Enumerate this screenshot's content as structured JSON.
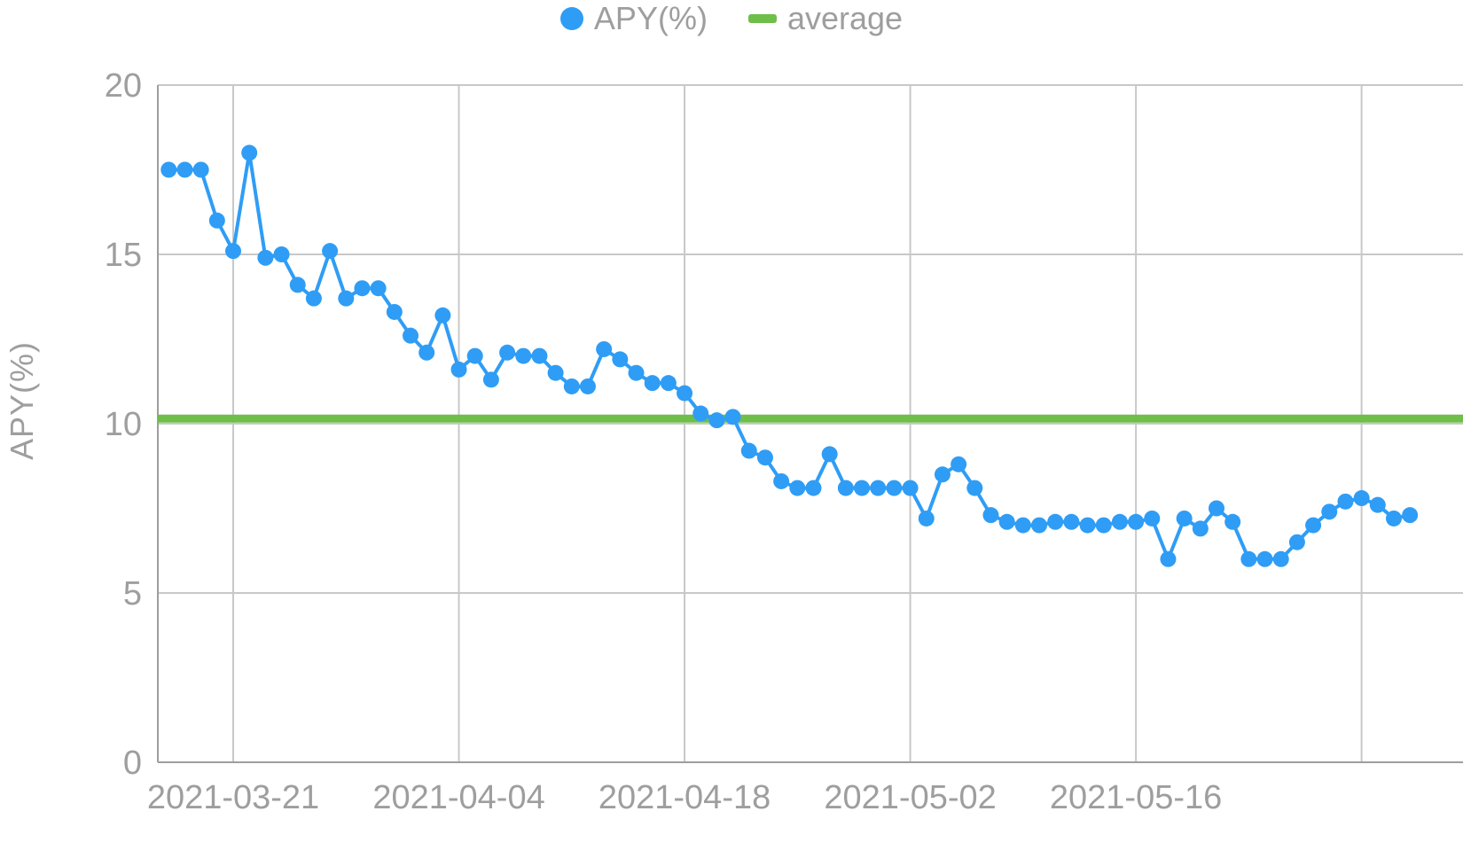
{
  "chart_data": {
    "type": "line",
    "title": "",
    "xlabel": "",
    "ylabel": "APY(%)",
    "ylim": [
      0,
      20
    ],
    "y_ticks": [
      0,
      5,
      10,
      15,
      20
    ],
    "x_tick_labels": [
      "2021-03-21",
      "2021-04-04",
      "2021-04-18",
      "2021-05-02",
      "2021-05-16"
    ],
    "grid": true,
    "legend_position": "top",
    "x": [
      "2021-03-17",
      "2021-03-18",
      "2021-03-19",
      "2021-03-20",
      "2021-03-21",
      "2021-03-22",
      "2021-03-23",
      "2021-03-24",
      "2021-03-25",
      "2021-03-26",
      "2021-03-27",
      "2021-03-28",
      "2021-03-29",
      "2021-03-30",
      "2021-03-31",
      "2021-04-01",
      "2021-04-02",
      "2021-04-03",
      "2021-04-04",
      "2021-04-05",
      "2021-04-06",
      "2021-04-07",
      "2021-04-08",
      "2021-04-09",
      "2021-04-10",
      "2021-04-11",
      "2021-04-12",
      "2021-04-13",
      "2021-04-14",
      "2021-04-15",
      "2021-04-16",
      "2021-04-17",
      "2021-04-18",
      "2021-04-19",
      "2021-04-20",
      "2021-04-21",
      "2021-04-22",
      "2021-04-23",
      "2021-04-24",
      "2021-04-25",
      "2021-04-26",
      "2021-04-27",
      "2021-04-28",
      "2021-04-29",
      "2021-04-30",
      "2021-05-01",
      "2021-05-02",
      "2021-05-03",
      "2021-05-04",
      "2021-05-05",
      "2021-05-06",
      "2021-05-07",
      "2021-05-08",
      "2021-05-09",
      "2021-05-10",
      "2021-05-11",
      "2021-05-12",
      "2021-05-13",
      "2021-05-14",
      "2021-05-15",
      "2021-05-16",
      "2021-05-17",
      "2021-05-18",
      "2021-05-19",
      "2021-05-20",
      "2021-05-21",
      "2021-05-22",
      "2021-05-23",
      "2021-05-24",
      "2021-05-25",
      "2021-05-26",
      "2021-05-27",
      "2021-05-28",
      "2021-05-29",
      "2021-05-30",
      "2021-05-31",
      "2021-06-01",
      "2021-06-02"
    ],
    "series": [
      {
        "name": "APY(%)",
        "type": "line",
        "color": "#2f9df5",
        "values": [
          17.5,
          17.5,
          17.5,
          16.0,
          15.1,
          18.0,
          14.9,
          15.0,
          14.1,
          13.7,
          15.1,
          13.7,
          14.0,
          14.0,
          13.3,
          12.6,
          12.1,
          13.2,
          11.6,
          12.0,
          11.3,
          12.1,
          12.0,
          12.0,
          11.5,
          11.1,
          11.1,
          12.2,
          11.9,
          11.5,
          11.2,
          11.2,
          10.9,
          10.3,
          10.1,
          10.2,
          9.2,
          9.0,
          8.3,
          8.1,
          8.1,
          9.1,
          8.1,
          8.1,
          8.1,
          8.1,
          8.1,
          7.2,
          8.5,
          8.8,
          8.1,
          7.3,
          7.1,
          7.0,
          7.0,
          7.1,
          7.1,
          7.0,
          7.0,
          7.1,
          7.1,
          7.2,
          6.0,
          7.2,
          6.9,
          7.5,
          7.1,
          6.0,
          6.0,
          6.0,
          6.5,
          7.0,
          7.4,
          7.7,
          7.8,
          7.6,
          7.2,
          7.3
        ]
      },
      {
        "name": "average",
        "type": "hline",
        "color": "#6fbe4a",
        "value": 10.15
      }
    ],
    "style": {
      "grid_color": "#c8c8c8",
      "axis_color": "#9e9e9e",
      "tick_color": "#9e9e9e",
      "tick_font_size": 38,
      "marker_radius": 9,
      "line_width": 4,
      "average_line_width": 9
    }
  }
}
